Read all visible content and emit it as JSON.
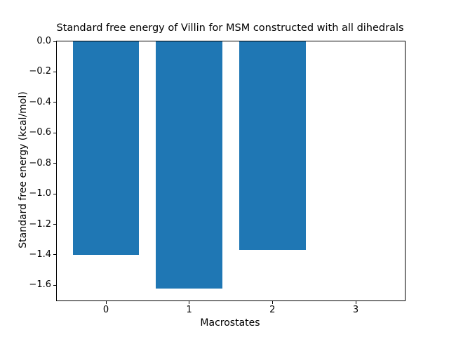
{
  "chart_data": {
    "type": "bar",
    "title": "Standard free energy of Villin for MSM constructed with all dihedrals",
    "xlabel": "Macrostates",
    "ylabel": "Standard free energy (kcal/mol)",
    "categories": [
      0,
      1,
      2,
      3
    ],
    "values": [
      -1.4,
      -1.62,
      -1.37,
      0.0
    ],
    "bar_width": 0.8,
    "bar_color": "#1f77b4",
    "xlim": [
      -0.59,
      3.59
    ],
    "ylim": [
      -1.7,
      0.0
    ],
    "yticks": [
      0.0,
      -0.2,
      -0.4,
      -0.6,
      -0.8,
      -1.0,
      -1.2,
      -1.4,
      -1.6
    ],
    "ytick_labels": [
      "0.0",
      "−0.2",
      "−0.4",
      "−0.6",
      "−0.8",
      "−1.0",
      "−1.2",
      "−1.4",
      "−1.6"
    ],
    "xticks": [
      0,
      1,
      2,
      3
    ],
    "xtick_labels": [
      "0",
      "1",
      "2",
      "3"
    ],
    "grid": false,
    "legend": null,
    "spine_color": "#000000",
    "background_color": "#ffffff"
  }
}
